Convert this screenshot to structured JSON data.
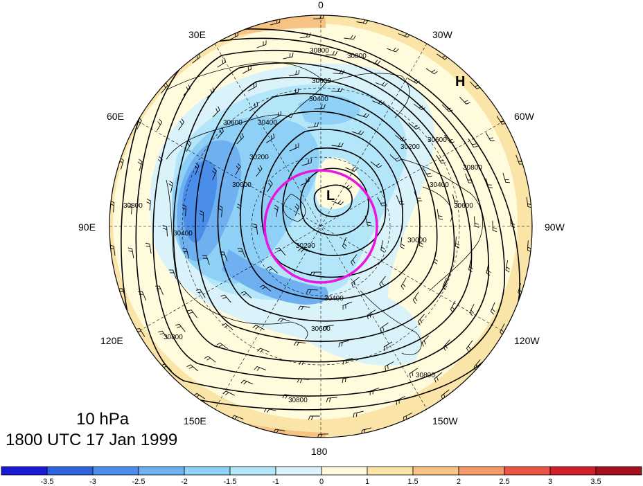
{
  "title": {
    "level": "10 hPa",
    "time": "1800 UTC 17 Jan 1999"
  },
  "longitude_labels": [
    "0",
    "30W",
    "60W",
    "90W",
    "120W",
    "150W",
    "180",
    "150E",
    "120E",
    "90E",
    "60E",
    "30E"
  ],
  "pressure_centers": {
    "high": "H",
    "low": "L"
  },
  "contour_labels": [
    "30800",
    "30800",
    "30600",
    "30400",
    "30600",
    "30400",
    "30200",
    "30200",
    "30600",
    "30800",
    "30400",
    "30000",
    "30600",
    "30200",
    "30000",
    "30400",
    "30800",
    "30800",
    "30600",
    "30400",
    "30800",
    "30800"
  ],
  "colorbar": {
    "tick_labels": [
      "-3.5",
      "-3",
      "-2.5",
      "-2",
      "-1.5",
      "-1",
      "0",
      "1",
      "1.5",
      "2",
      "2.5",
      "3",
      "3.5"
    ],
    "colors": [
      "#1a1ad6",
      "#2f64e0",
      "#4b8eea",
      "#6fb0f0",
      "#8fd0f6",
      "#b4e6fa",
      "#daf3fb",
      "#fffbdc",
      "#fbe4a8",
      "#f7c384",
      "#f29a6a",
      "#ec5448",
      "#d0202c",
      "#a3101e"
    ]
  },
  "highlight_circle_color": "#e816e0",
  "colors": {
    "land": "#000000",
    "contour": "#000000"
  }
}
